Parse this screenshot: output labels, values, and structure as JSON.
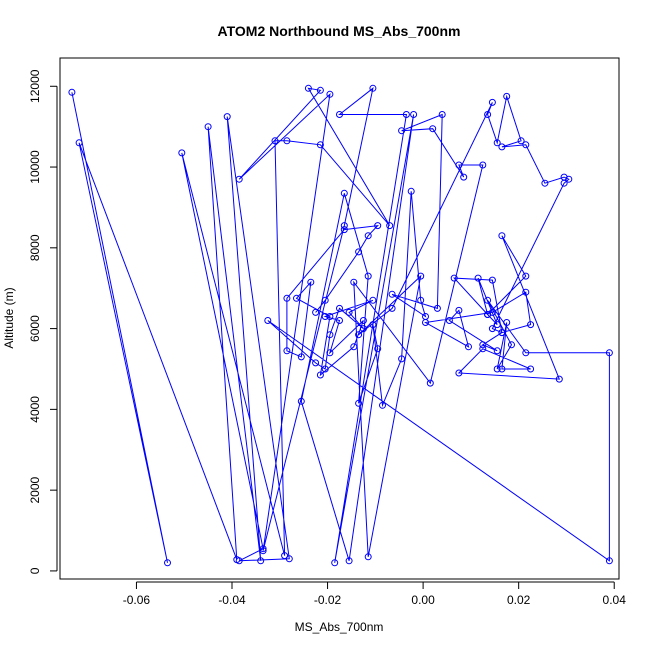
{
  "chart_data": {
    "type": "line",
    "title": "ATOM2 Northbound MS_Abs_700nm",
    "xlabel": "MS_Abs_700nm",
    "ylabel": "Altitude (m)",
    "xlim": [
      -0.076,
      0.041
    ],
    "ylim": [
      -200,
      12700
    ],
    "xticks": [
      -0.06,
      -0.04,
      -0.02,
      0.0,
      0.02,
      0.04
    ],
    "xtick_labels": [
      "-0.06",
      "-0.04",
      "-0.02",
      "0.00",
      "0.02",
      "0.04"
    ],
    "yticks": [
      0,
      2000,
      4000,
      6000,
      8000,
      10000,
      12000
    ],
    "ytick_labels": [
      "0",
      "2000",
      "4000",
      "6000",
      "8000",
      "10000",
      "12000"
    ],
    "grid": false,
    "legend": "none",
    "marker": "open-circle",
    "color": "#0000ff",
    "series": [
      {
        "x": [
          -0.0735,
          -0.0535,
          -0.072,
          -0.039,
          -0.045,
          -0.034,
          -0.041,
          -0.028,
          -0.0385,
          -0.0335,
          -0.0505,
          -0.029,
          -0.031,
          -0.0285,
          -0.0215,
          -0.007,
          -0.024,
          -0.0215,
          -0.0385,
          -0.0195,
          -0.0335,
          -0.0165,
          -0.0105,
          -0.0175,
          -0.0035,
          -0.0185,
          -0.002,
          -0.0155,
          -0.0255,
          -0.0165,
          -0.0115,
          -0.0135,
          -0.0095,
          -0.0105,
          -0.0085,
          -0.0045,
          -0.0025,
          -0.0005,
          0.0005,
          -0.0065,
          0.003,
          0.004,
          -0.0045,
          0.002,
          0.0085,
          0.0075,
          0.0125,
          0.0015,
          -0.0145,
          -0.0115,
          -0.0005,
          -0.0135,
          -0.0065,
          0.0145,
          0.0135,
          0.0155,
          0.0175,
          0.0205,
          0.0165,
          0.0215,
          0.0255,
          0.0295,
          0.0305,
          0.0295,
          0.0145,
          0.0165,
          0.0125,
          0.0155,
          0.0055,
          0.0075,
          0.0095,
          0.0005,
          0.0145,
          0.0215,
          0.0225,
          0.0165,
          0.0145,
          0.0065,
          0.0135,
          0.0115,
          0.0155,
          0.0135,
          0.0215,
          0.0165,
          0.0285,
          0.0075,
          0.0125,
          0.0225,
          0.0165,
          0.0175,
          0.0155,
          0.0185,
          0.0135,
          0.0215,
          0.039,
          0.039,
          -0.0325,
          -0.0225,
          -0.0205,
          -0.0195,
          -0.0175,
          -0.0125,
          -0.0155,
          -0.0105,
          -0.0205,
          -0.0175,
          -0.0195,
          -0.0125,
          -0.0145,
          -0.0215,
          -0.0195,
          -0.0265,
          -0.0235,
          -0.0255,
          -0.0285,
          -0.0285,
          -0.0165,
          -0.0095,
          -0.0115,
          -0.0135,
          -0.0205,
          -0.0225
        ],
        "y": [
          11850,
          200,
          10600,
          280,
          11000,
          250,
          11250,
          300,
          250,
          550,
          10350,
          380,
          10650,
          10650,
          10550,
          8550,
          11950,
          11900,
          9700,
          11800,
          500,
          8550,
          11950,
          11300,
          11300,
          200,
          11300,
          250,
          4200,
          9350,
          7300,
          4150,
          5500,
          6100,
          4100,
          5250,
          9400,
          6700,
          6300,
          6850,
          6500,
          11300,
          10900,
          10950,
          9750,
          10050,
          10050,
          4650,
          7150,
          350,
          7300,
          5850,
          6500,
          11600,
          11300,
          10600,
          11750,
          10650,
          10500,
          10550,
          9600,
          9750,
          9700,
          9600,
          6000,
          5900,
          5600,
          5450,
          6200,
          6450,
          5550,
          6150,
          6400,
          6900,
          6100,
          5900,
          7200,
          7250,
          6350,
          7250,
          6100,
          6350,
          7300,
          8300,
          4750,
          4900,
          5500,
          5000,
          5000,
          6150,
          5000,
          5600,
          6700,
          5400,
          5400,
          250,
          6200,
          5150,
          5000,
          5850,
          6500,
          6000,
          6400,
          6700,
          6300,
          6200,
          5400,
          6200,
          5550,
          4850,
          6300,
          6750,
          7150,
          5300,
          5450,
          6750,
          8450,
          8550,
          8300,
          7900,
          6700,
          6400
        ]
      }
    ]
  }
}
